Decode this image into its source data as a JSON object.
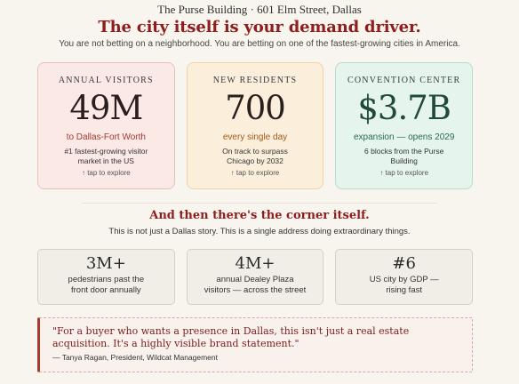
{
  "header": {
    "address": "The Purse Building · 601 Elm Street, Dallas",
    "headline": "The city itself is your demand driver.",
    "subline": "You are not betting on a neighborhood. You are betting on one of the fastest-growing cities in America."
  },
  "stats": [
    {
      "label": "ANNUAL VISITORS",
      "value": "49M",
      "sub": "to Dallas-Fort Worth",
      "detail": "#1 fastest-growing visitor market in the US",
      "tap": "↑ tap to explore"
    },
    {
      "label": "NEW RESIDENTS",
      "value": "700",
      "sub": "every single day",
      "detail": "On track to surpass Chicago by 2032",
      "tap": "↑ tap to explore"
    },
    {
      "label": "CONVENTION CENTER",
      "value": "$3.7B",
      "sub": "expansion — opens 2029",
      "detail": "6 blocks from the Purse Building",
      "tap": "↑ tap to explore"
    }
  ],
  "corner": {
    "title": "And then there's the corner itself.",
    "subtitle": "This is not just a Dallas story. This is a single address doing extraordinary things."
  },
  "facts": [
    {
      "value": "3M+",
      "line1": "pedestrians past the",
      "line2": "front door annually"
    },
    {
      "value": "4M+",
      "line1": "annual Dealey Plaza",
      "line2": "visitors — across the street"
    },
    {
      "value": "#6",
      "line1": "US city by GDP —",
      "line2": "rising fast"
    }
  ],
  "quote": {
    "line1": "\"For a buyer who wants a presence in Dallas, this isn't just a real estate",
    "line2": "acquisition. It's a highly visible brand statement.\"",
    "attribution": "— Tanya Ragan, President, Wildcat Management"
  }
}
